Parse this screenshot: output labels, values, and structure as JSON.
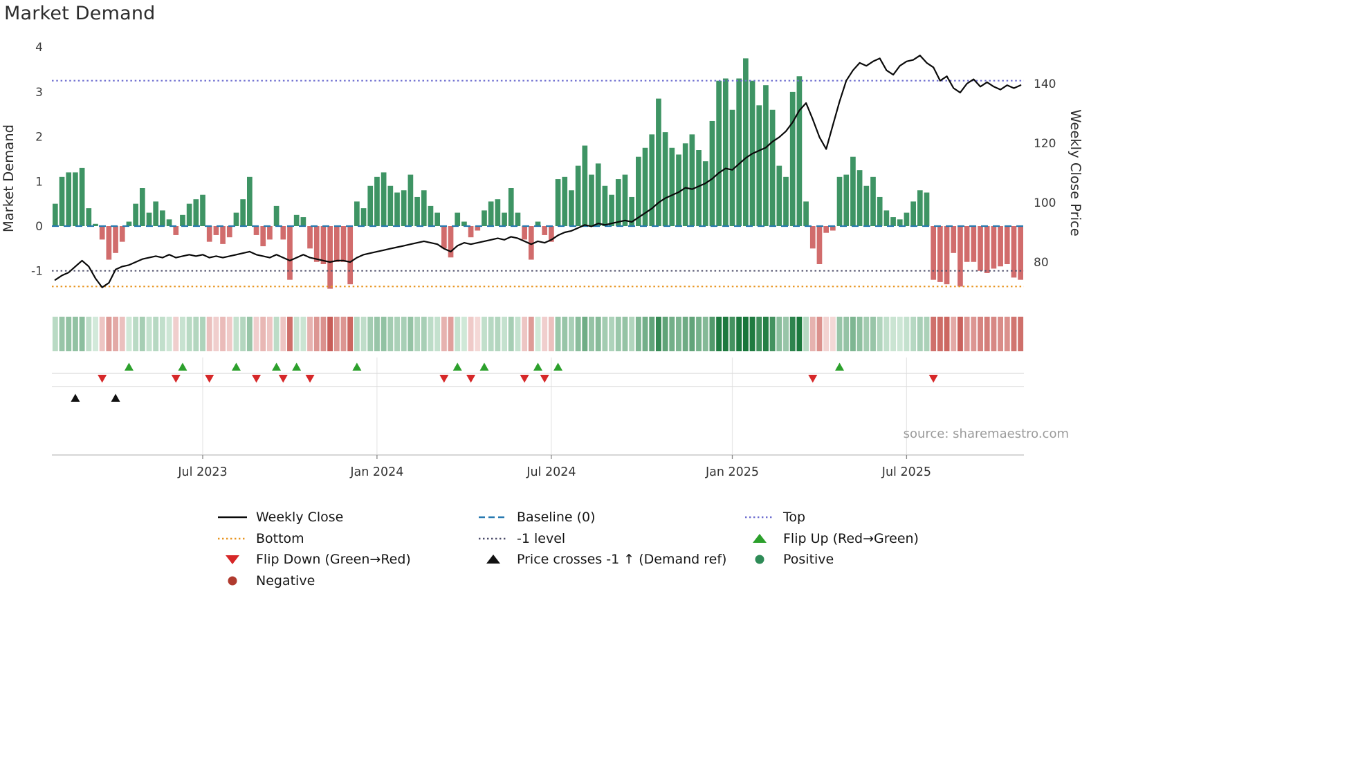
{
  "source_note": "source: sharemaestro.com",
  "colors": {
    "positive_bar": "#2e8b57",
    "negative_bar": "#cd5f5f",
    "price_line": "#0a0a0a",
    "baseline": "#2779b0",
    "top_line": "#6f6fd0",
    "bottom_line": "#e8941f",
    "minus_one_line": "#4a4a68",
    "flip_up": "#2ca02c",
    "flip_down": "#d62728",
    "price_cross": "#111111"
  },
  "chart_data": {
    "type": "bar+line",
    "title": "Market Demand",
    "x_axis": {
      "unit": "week",
      "num_weeks": 145,
      "tick_labels": [
        "Jul 2023",
        "Jan 2024",
        "Jul 2024",
        "Jan 2025",
        "Jul 2025"
      ],
      "tick_week_indices": [
        22,
        48,
        74,
        101,
        127
      ]
    },
    "y_left": {
      "label": "Market Demand",
      "ticks": [
        4,
        3,
        2,
        1,
        0,
        -1
      ],
      "range": [
        -1.65,
        4.1
      ]
    },
    "y_right": {
      "label": "Weekly Close Price",
      "ticks": [
        140,
        120,
        100,
        80
      ],
      "range": [
        70,
        152
      ]
    },
    "reference_lines": [
      {
        "name": "Top",
        "value": 3.25
      },
      {
        "name": "Baseline (0)",
        "value": 0
      },
      {
        "name": "-1 level",
        "value": -1
      },
      {
        "name": "Bottom",
        "value": -1.35
      }
    ],
    "series": [
      {
        "name": "Market Demand",
        "type": "bar",
        "axis": "left",
        "values": [
          0.5,
          1.1,
          1.2,
          1.2,
          1.3,
          0.4,
          0.05,
          -0.3,
          -0.75,
          -0.6,
          -0.35,
          0.1,
          0.5,
          0.85,
          0.3,
          0.55,
          0.35,
          0.15,
          -0.2,
          0.25,
          0.5,
          0.6,
          0.7,
          -0.35,
          -0.2,
          -0.4,
          -0.25,
          0.3,
          0.6,
          1.1,
          -0.2,
          -0.45,
          -0.3,
          0.45,
          -0.3,
          -1.2,
          0.25,
          0.2,
          -0.5,
          -0.8,
          -0.85,
          -1.4,
          -0.8,
          -0.8,
          -1.3,
          0.55,
          0.4,
          0.9,
          1.1,
          1.2,
          0.9,
          0.75,
          0.8,
          1.15,
          0.65,
          0.8,
          0.45,
          0.3,
          -0.5,
          -0.7,
          0.3,
          0.1,
          -0.25,
          -0.1,
          0.35,
          0.55,
          0.6,
          0.3,
          0.85,
          0.3,
          -0.3,
          -0.75,
          0.1,
          -0.2,
          -0.35,
          1.05,
          1.1,
          0.8,
          1.35,
          1.8,
          1.15,
          1.4,
          0.9,
          0.7,
          1.05,
          1.15,
          0.65,
          1.55,
          1.75,
          2.05,
          2.85,
          2.1,
          1.75,
          1.6,
          1.85,
          2.05,
          1.7,
          1.45,
          2.35,
          3.25,
          3.3,
          2.6,
          3.3,
          3.75,
          3.25,
          2.7,
          3.15,
          2.6,
          1.35,
          1.1,
          3.0,
          3.35,
          0.55,
          -0.5,
          -0.85,
          -0.15,
          -0.1,
          1.1,
          1.15,
          1.55,
          1.25,
          0.9,
          1.1,
          0.65,
          0.35,
          0.2,
          0.15,
          0.3,
          0.55,
          0.8,
          0.75,
          -1.2,
          -1.25,
          -1.3,
          -0.6,
          -1.35,
          -0.8,
          -0.8,
          -1.0,
          -1.05,
          -0.95,
          -0.9,
          -0.85,
          -1.15,
          -1.2
        ]
      },
      {
        "name": "Weekly Close",
        "type": "line",
        "axis": "right",
        "values": [
          74,
          75.5,
          76.5,
          78.5,
          80.5,
          78.5,
          74.5,
          71.5,
          73,
          77.5,
          78.5,
          79,
          80,
          81,
          81.5,
          82,
          81.5,
          82.5,
          81.5,
          82,
          82.5,
          82,
          82.5,
          81.5,
          82,
          81.5,
          82,
          82.5,
          83,
          83.5,
          82.5,
          82,
          81.5,
          82.5,
          81.5,
          80.5,
          81.5,
          82.5,
          81.5,
          81,
          80.5,
          80,
          80.5,
          80.5,
          80,
          81.5,
          82.5,
          83,
          83.5,
          84,
          84.5,
          85,
          85.5,
          86,
          86.5,
          87,
          86.5,
          86,
          84.5,
          83.5,
          85.5,
          86.5,
          86,
          86.5,
          87,
          87.5,
          88,
          87.5,
          88.5,
          88,
          87,
          86,
          87,
          86.5,
          87.5,
          89,
          90,
          90.5,
          91.5,
          92.5,
          92,
          93,
          92.5,
          93,
          93.5,
          94,
          93.5,
          95,
          96.5,
          98,
          100,
          101.5,
          102.5,
          103.5,
          105,
          104.5,
          105.5,
          106.5,
          108,
          110,
          111.5,
          111,
          113,
          115,
          116.5,
          117.5,
          118.5,
          120.5,
          122,
          124,
          127,
          131,
          133.5,
          128,
          122,
          118,
          126,
          134,
          141,
          144.5,
          147,
          146,
          147.5,
          148.5,
          144.5,
          143,
          146,
          147.5,
          148,
          149.5,
          147,
          145.5,
          141,
          142.5,
          138.5,
          137,
          140,
          141.5,
          139,
          140.5,
          139,
          138,
          139.5,
          138.5,
          139.5
        ]
      }
    ],
    "markers": {
      "flip_up_weeks": [
        11,
        19,
        27,
        33,
        36,
        45,
        60,
        64,
        72,
        75,
        117
      ],
      "flip_down_weeks": [
        7,
        18,
        23,
        30,
        34,
        38,
        58,
        62,
        70,
        73,
        113,
        131
      ],
      "price_cross_weeks": [
        3,
        9
      ]
    },
    "heatmap": {
      "description": "weekly demand intensity strip, green=positive red=negative, darker=stronger",
      "source_series": "Market Demand"
    }
  },
  "legend": {
    "columns": [
      {
        "items": [
          {
            "label": "Weekly Close",
            "swatch": "solid-line",
            "color": "#0a0a0a"
          },
          {
            "label": "Bottom",
            "swatch": "dotted-line",
            "color": "#e8941f"
          },
          {
            "label": "Flip Down (Green→Red)",
            "swatch": "triangle-down",
            "color": "#d62728"
          },
          {
            "label": "Negative",
            "swatch": "circle",
            "color": "#b03a2e"
          }
        ]
      },
      {
        "items": [
          {
            "label": "Baseline (0)",
            "swatch": "dashed-line",
            "color": "#2779b0"
          },
          {
            "label": "-1 level",
            "swatch": "dotted-line",
            "color": "#4a4a68"
          },
          {
            "label": "Price crosses -1 ↑ (Demand ref)",
            "swatch": "triangle-up",
            "color": "#111111"
          }
        ]
      },
      {
        "items": [
          {
            "label": "Top",
            "swatch": "dotted-line",
            "color": "#6f6fd0"
          },
          {
            "label": "Flip Up (Red→Green)",
            "swatch": "triangle-up",
            "color": "#2ca02c"
          },
          {
            "label": "Positive",
            "swatch": "circle",
            "color": "#2e8b57"
          }
        ]
      }
    ]
  }
}
